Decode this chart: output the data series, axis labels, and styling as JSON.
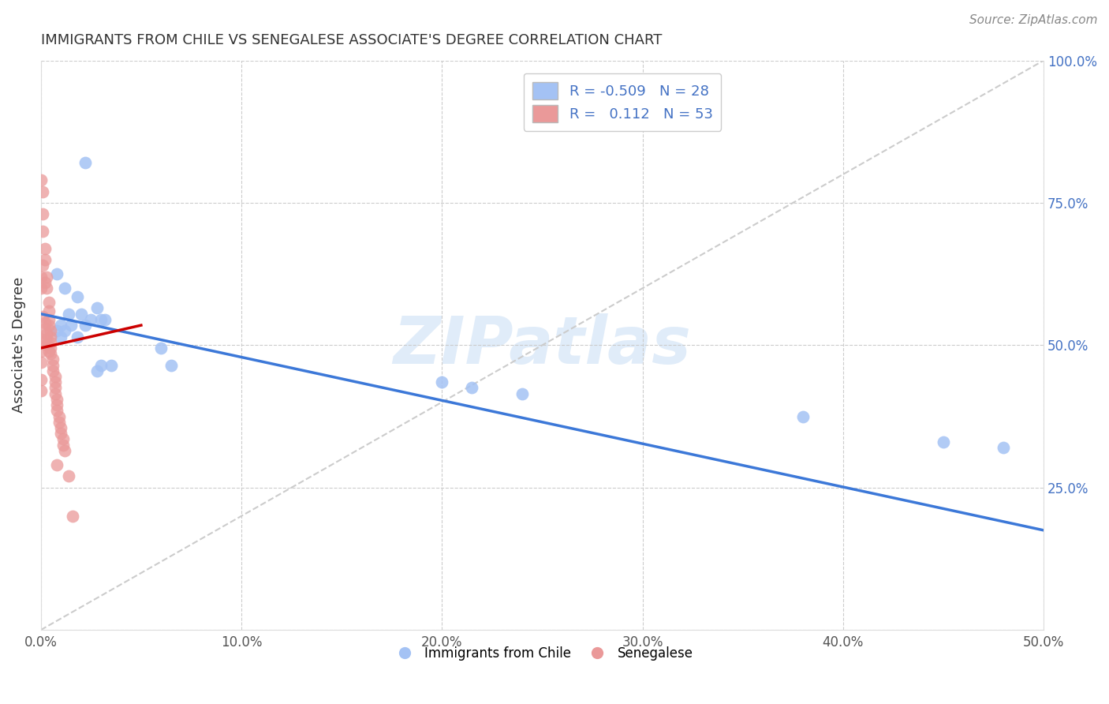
{
  "title": "IMMIGRANTS FROM CHILE VS SENEGALESE ASSOCIATE'S DEGREE CORRELATION CHART",
  "source": "Source: ZipAtlas.com",
  "ylabel": "Associate's Degree",
  "watermark": "ZIPatlas",
  "xlim": [
    0.0,
    0.5
  ],
  "ylim": [
    0.0,
    1.0
  ],
  "xticks": [
    0.0,
    0.1,
    0.2,
    0.3,
    0.4,
    0.5
  ],
  "yticks": [
    0.0,
    0.25,
    0.5,
    0.75,
    1.0
  ],
  "legend_labels": [
    "Immigrants from Chile",
    "Senegalese"
  ],
  "blue_R": "-0.509",
  "blue_N": "28",
  "pink_R": "0.112",
  "pink_N": "53",
  "blue_color": "#a4c2f4",
  "pink_color": "#ea9999",
  "blue_line_color": "#3c78d8",
  "pink_line_color": "#cc0000",
  "diagonal_color": "#cccccc",
  "blue_line": [
    [
      0.0,
      0.555
    ],
    [
      0.5,
      0.175
    ]
  ],
  "pink_line": [
    [
      0.0,
      0.495
    ],
    [
      0.05,
      0.535
    ]
  ],
  "diagonal_line": [
    [
      0.0,
      0.0
    ],
    [
      0.5,
      1.0
    ]
  ],
  "blue_scatter": [
    [
      0.022,
      0.82
    ],
    [
      0.008,
      0.625
    ],
    [
      0.012,
      0.6
    ],
    [
      0.018,
      0.585
    ],
    [
      0.014,
      0.555
    ],
    [
      0.02,
      0.555
    ],
    [
      0.025,
      0.545
    ],
    [
      0.028,
      0.565
    ],
    [
      0.03,
      0.545
    ],
    [
      0.032,
      0.545
    ],
    [
      0.022,
      0.535
    ],
    [
      0.015,
      0.535
    ],
    [
      0.01,
      0.535
    ],
    [
      0.008,
      0.525
    ],
    [
      0.012,
      0.525
    ],
    [
      0.018,
      0.515
    ],
    [
      0.01,
      0.515
    ],
    [
      0.03,
      0.465
    ],
    [
      0.035,
      0.465
    ],
    [
      0.028,
      0.455
    ],
    [
      0.06,
      0.495
    ],
    [
      0.065,
      0.465
    ],
    [
      0.2,
      0.435
    ],
    [
      0.215,
      0.425
    ],
    [
      0.24,
      0.415
    ],
    [
      0.38,
      0.375
    ],
    [
      0.45,
      0.33
    ],
    [
      0.48,
      0.32
    ]
  ],
  "pink_scatter": [
    [
      0.0,
      0.79
    ],
    [
      0.001,
      0.77
    ],
    [
      0.001,
      0.73
    ],
    [
      0.001,
      0.7
    ],
    [
      0.002,
      0.67
    ],
    [
      0.002,
      0.65
    ],
    [
      0.003,
      0.62
    ],
    [
      0.003,
      0.6
    ],
    [
      0.004,
      0.575
    ],
    [
      0.004,
      0.56
    ],
    [
      0.004,
      0.545
    ],
    [
      0.004,
      0.535
    ],
    [
      0.005,
      0.525
    ],
    [
      0.005,
      0.515
    ],
    [
      0.005,
      0.505
    ],
    [
      0.005,
      0.495
    ],
    [
      0.005,
      0.485
    ],
    [
      0.006,
      0.475
    ],
    [
      0.006,
      0.465
    ],
    [
      0.006,
      0.455
    ],
    [
      0.007,
      0.445
    ],
    [
      0.007,
      0.435
    ],
    [
      0.007,
      0.425
    ],
    [
      0.007,
      0.415
    ],
    [
      0.008,
      0.405
    ],
    [
      0.008,
      0.395
    ],
    [
      0.008,
      0.385
    ],
    [
      0.009,
      0.375
    ],
    [
      0.009,
      0.365
    ],
    [
      0.01,
      0.355
    ],
    [
      0.01,
      0.345
    ],
    [
      0.011,
      0.335
    ],
    [
      0.011,
      0.325
    ],
    [
      0.012,
      0.315
    ],
    [
      0.001,
      0.55
    ],
    [
      0.002,
      0.54
    ],
    [
      0.002,
      0.53
    ],
    [
      0.003,
      0.52
    ],
    [
      0.003,
      0.51
    ],
    [
      0.003,
      0.5
    ],
    [
      0.004,
      0.49
    ],
    [
      0.0,
      0.6
    ],
    [
      0.001,
      0.64
    ],
    [
      0.002,
      0.61
    ],
    [
      0.0,
      0.62
    ],
    [
      0.0,
      0.51
    ],
    [
      0.0,
      0.49
    ],
    [
      0.0,
      0.47
    ],
    [
      0.008,
      0.29
    ],
    [
      0.014,
      0.27
    ],
    [
      0.016,
      0.2
    ],
    [
      0.0,
      0.42
    ],
    [
      0.0,
      0.44
    ]
  ]
}
